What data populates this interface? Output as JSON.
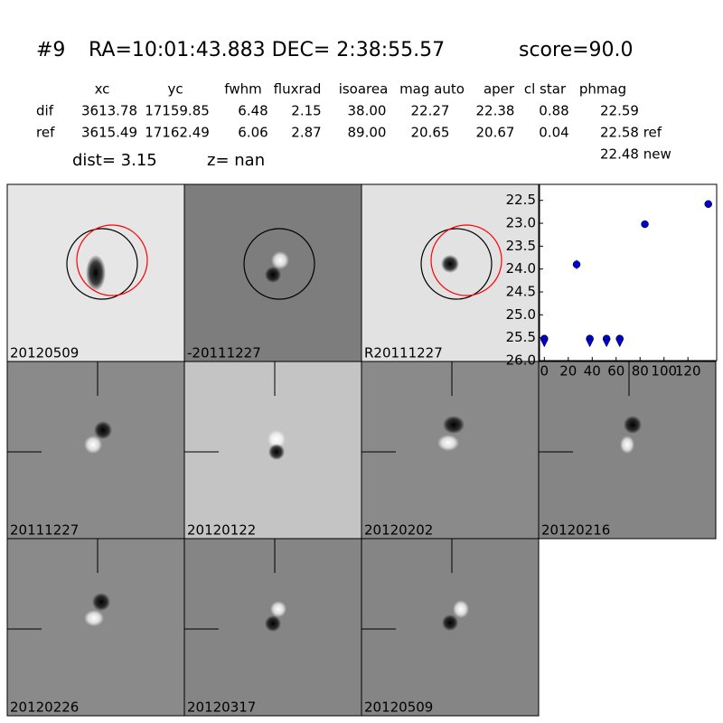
{
  "header": {
    "parts": [
      "#9",
      "RA=10:01:43.883 DEC= 2:38:55.57",
      "score=90.0"
    ]
  },
  "table": {
    "columns": [
      "xc",
      "yc",
      "fwhm",
      "fluxrad",
      "isoarea",
      "mag auto",
      "aper",
      "cl star",
      "phmag"
    ],
    "rows": [
      [
        "dif",
        "3613.78",
        "17159.85",
        "6.48",
        "2.15",
        "38.00",
        "22.27",
        "22.38",
        "0.88",
        "22.59"
      ],
      [
        "ref",
        "3615.49",
        "17162.49",
        "6.06",
        "2.87",
        "89.00",
        "20.65",
        "20.67",
        "0.04",
        "22.58 ref"
      ]
    ],
    "extra": "22.48 new"
  },
  "info": [
    "dist=  3.15",
    "z=   nan"
  ],
  "stamps": [
    {
      "label": "20120509",
      "color": "#000000"
    },
    {
      "label": "-20111227",
      "color": "#000000"
    },
    {
      "label": "R20111227",
      "color": "#000000"
    },
    {
      "label": "20111227",
      "color": "#000000"
    },
    {
      "label": "20120122",
      "color": "#000000"
    },
    {
      "label": "20120202",
      "color": "#000000"
    },
    {
      "label": "20120216",
      "color": "#000000"
    },
    {
      "label": "20120226",
      "color": "#000000"
    },
    {
      "label": "20120317",
      "color": "#000000"
    },
    {
      "label": "20120509",
      "color": "#ff0000"
    }
  ],
  "chart_data": {
    "type": "scatter",
    "xlim": [
      -4,
      144
    ],
    "ylim": [
      26.0,
      22.15
    ],
    "inverted_y": true,
    "xticks": [
      0,
      20,
      40,
      60,
      80,
      100,
      120
    ],
    "yticks": [
      22.5,
      {
        "value": 23,
        "label": "23.0"
      },
      23.5,
      {
        "value": 24,
        "label": "24.0"
      },
      24.5,
      {
        "value": 25,
        "label": "25.0"
      },
      25.5,
      {
        "value": 26,
        "label": "26.0"
      }
    ],
    "series": [
      {
        "color": "#0000cc",
        "marker": "o",
        "x": [
          27,
          84,
          137
        ],
        "values": [
          23.9,
          23.02,
          22.58
        ],
        "errors": [
          0.1,
          0.04,
          0.04
        ]
      },
      {
        "color": "#0000cc",
        "marker": "o",
        "x": [
          0,
          38,
          52,
          63
        ],
        "values": [
          25.52,
          25.52,
          25.52,
          25.52
        ]
      },
      {
        "color": "#0000cc",
        "marker": "v",
        "x": [
          0,
          38,
          52,
          63
        ],
        "values": [
          25.62,
          25.62,
          25.62,
          25.62
        ]
      }
    ]
  }
}
